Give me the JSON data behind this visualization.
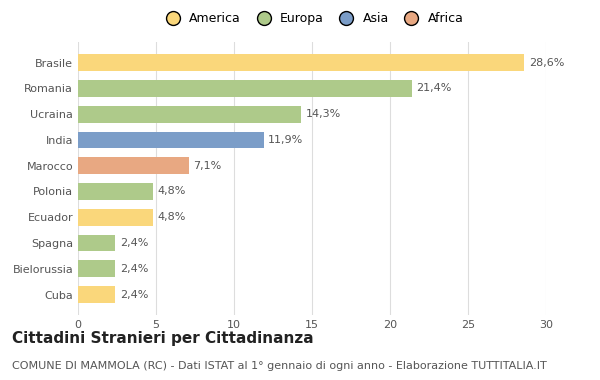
{
  "categories": [
    "Brasile",
    "Romania",
    "Ucraina",
    "India",
    "Marocco",
    "Polonia",
    "Ecuador",
    "Spagna",
    "Bielorussia",
    "Cuba"
  ],
  "values": [
    28.6,
    21.4,
    14.3,
    11.9,
    7.1,
    4.8,
    4.8,
    2.4,
    2.4,
    2.4
  ],
  "labels": [
    "28,6%",
    "21,4%",
    "14,3%",
    "11,9%",
    "7,1%",
    "4,8%",
    "4,8%",
    "2,4%",
    "2,4%",
    "2,4%"
  ],
  "continents": [
    "America",
    "Europa",
    "Europa",
    "Asia",
    "Africa",
    "Europa",
    "America",
    "Europa",
    "Europa",
    "America"
  ],
  "colors": {
    "America": "#FAD77B",
    "Europa": "#AECA8A",
    "Asia": "#7B9DC8",
    "Africa": "#E8A882"
  },
  "legend_order": [
    "America",
    "Europa",
    "Asia",
    "Africa"
  ],
  "xlim": [
    0,
    30
  ],
  "xticks": [
    0,
    5,
    10,
    15,
    20,
    25,
    30
  ],
  "title": "Cittadini Stranieri per Cittadinanza",
  "subtitle": "COMUNE DI MAMMOLA (RC) - Dati ISTAT al 1° gennaio di ogni anno - Elaborazione TUTTITALIA.IT",
  "bg_color": "#FFFFFF",
  "grid_color": "#DDDDDD",
  "bar_height": 0.65,
  "title_fontsize": 11,
  "subtitle_fontsize": 8,
  "label_fontsize": 8,
  "tick_fontsize": 8,
  "legend_fontsize": 9
}
